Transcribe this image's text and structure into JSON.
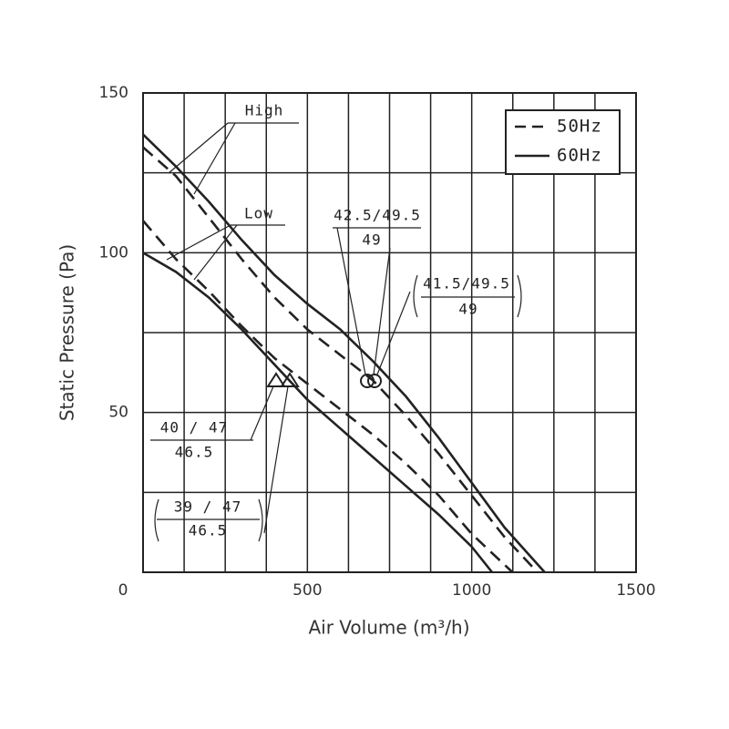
{
  "chart_data": {
    "type": "line",
    "x_label": "Air Volume (m³/h)",
    "y_label": "Static Pressure (Pa)",
    "xlim": [
      0,
      1500
    ],
    "ylim": [
      0,
      150
    ],
    "xticks": [
      0,
      500,
      1000,
      1500
    ],
    "yticks": [
      50,
      100,
      150
    ],
    "x_grid": [
      125,
      250,
      375,
      500,
      625,
      750,
      875,
      1000,
      1125,
      1250,
      1375
    ],
    "y_grid": [
      25,
      50,
      75,
      100,
      125
    ],
    "legend_position": "upper right",
    "series": [
      {
        "name": "50Hz",
        "dashed": true,
        "color": "#222",
        "x": [
          0,
          100,
          200,
          300,
          400,
          500,
          600,
          700,
          800,
          900,
          1000,
          1100,
          1200
        ],
        "values": [
          133,
          124,
          111,
          98,
          86,
          76,
          68,
          60,
          49,
          37,
          24,
          11,
          0
        ]
      },
      {
        "name": "60Hz",
        "dashed": false,
        "color": "#222",
        "x": [
          0,
          100,
          200,
          300,
          400,
          500,
          600,
          700,
          800,
          900,
          1000,
          1100,
          1222
        ],
        "values": [
          137,
          127,
          116,
          104,
          93,
          84,
          76,
          66,
          55,
          42,
          28,
          14,
          0
        ]
      },
      {
        "name": "50Hz",
        "dashed": true,
        "color": "#222",
        "x": [
          0,
          100,
          200,
          300,
          400,
          500,
          600,
          700,
          800,
          900,
          1000,
          1124
        ],
        "values": [
          110,
          98,
          88,
          77,
          67,
          59,
          51,
          43,
          34,
          24,
          12,
          0
        ]
      },
      {
        "name": "60Hz",
        "dashed": false,
        "color": "#222",
        "x": [
          0,
          100,
          200,
          300,
          400,
          500,
          600,
          700,
          800,
          900,
          1000,
          1062
        ],
        "values": [
          100,
          94,
          86,
          76,
          65,
          54,
          45,
          36,
          27,
          18,
          8,
          0
        ]
      }
    ],
    "annotations": [
      {
        "top": "High"
      },
      {
        "top": "Low"
      },
      {
        "top": "42.5/49.5",
        "bottom": "49"
      },
      {
        "top": "41.5/49.5",
        "bottom": "49"
      },
      {
        "top": "40 / 47",
        "bottom": "46.5"
      },
      {
        "top": "39 / 47",
        "bottom": "46.5"
      }
    ]
  }
}
